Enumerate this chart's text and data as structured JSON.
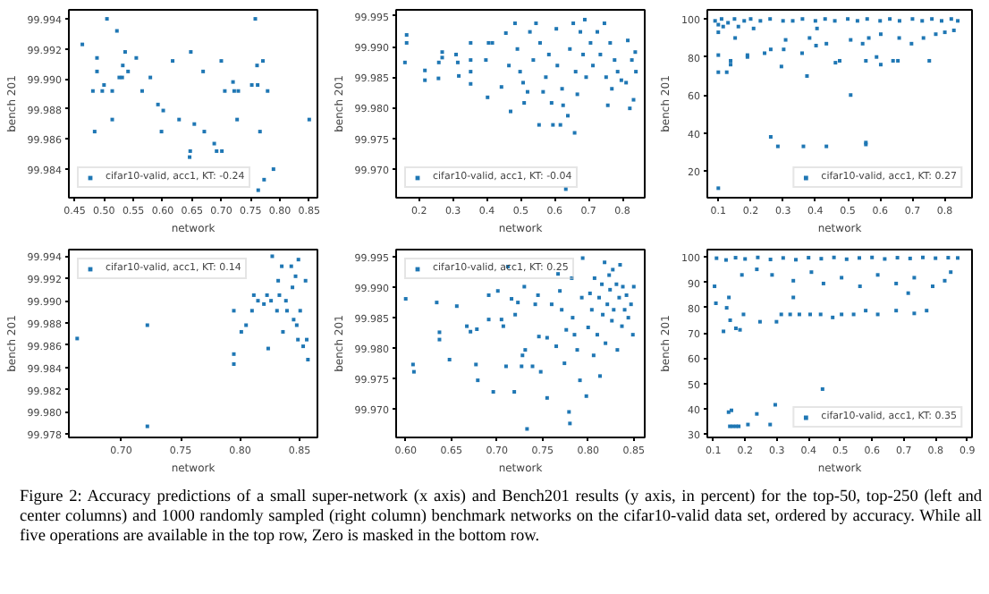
{
  "chart_data": [
    {
      "type": "scatter",
      "xlabel": "network",
      "ylabel": "bench 201",
      "legend": "bottom left",
      "marker": "square",
      "xlim": [
        0.44,
        0.864
      ],
      "ylim": [
        99.9821,
        99.9946
      ],
      "xticks": [
        0.45,
        {
          "value": 0.5,
          "label": "0.50"
        },
        0.55,
        {
          "value": 0.6,
          "label": "0.60"
        },
        0.65,
        {
          "value": 0.7,
          "label": "0.70"
        },
        0.75,
        {
          "value": 0.8,
          "label": "0.80"
        },
        0.85
      ],
      "yticks": [
        99.984,
        99.986,
        99.988,
        {
          "value": 99.99,
          "label": "99.990"
        },
        99.992,
        99.994
      ],
      "series": [
        {
          "name": "cifar10-valid, acc1, KT: -0.24",
          "color": "#1f77b4",
          "x": [
            0.463,
            0.505,
            0.522,
            0.488,
            0.488,
            0.481,
            0.484,
            0.497,
            0.5,
            0.514,
            0.514,
            0.526,
            0.531,
            0.532,
            0.536,
            0.541,
            0.555,
            0.565,
            0.579,
            0.592,
            0.601,
            0.598,
            0.617,
            0.628,
            0.648,
            0.647,
            0.646,
            0.654,
            0.669,
            0.671,
            0.688,
            0.692,
            0.701,
            0.7,
            0.706,
            0.72,
            0.722,
            0.727,
            0.729,
            0.752,
            0.758,
            0.761,
            0.762,
            0.766,
            0.771,
            0.763,
            0.773,
            0.779,
            0.789,
            0.85
          ],
          "values": [
            99.9923,
            99.994,
            99.9932,
            99.9914,
            99.9905,
            99.9892,
            99.9865,
            99.9892,
            99.9896,
            99.9892,
            99.9873,
            99.9901,
            99.9901,
            99.9909,
            99.9918,
            99.9905,
            99.9914,
            99.9892,
            99.9901,
            99.9883,
            99.9879,
            99.9865,
            99.9912,
            99.9873,
            99.9918,
            99.9852,
            99.9848,
            99.987,
            99.9905,
            99.9865,
            99.9857,
            99.9852,
            99.9852,
            99.9912,
            99.9892,
            99.9898,
            99.9892,
            99.9873,
            99.9892,
            99.9896,
            99.994,
            99.9909,
            99.9896,
            99.9865,
            99.9912,
            99.9826,
            99.9833,
            99.9892,
            99.984,
            99.9873
          ]
        }
      ]
    },
    {
      "type": "scatter",
      "xlabel": "network",
      "ylabel": "bench 201",
      "legend": "bottom left",
      "marker": "square",
      "xlim": [
        0.132,
        0.866
      ],
      "ylim": [
        99.9653,
        99.996
      ],
      "xticks": [
        0.2,
        0.3,
        0.4,
        0.5,
        0.6,
        0.7,
        0.8
      ],
      "yticks": [
        {
          "value": 99.97,
          "label": "99.970"
        },
        99.975,
        {
          "value": 99.98,
          "label": "99.980"
        },
        99.985,
        {
          "value": 99.99,
          "label": "99.990"
        },
        99.995
      ],
      "series": [
        {
          "name": "cifar10-valid, acc1, KT: -0.04",
          "color": "#1f77b4",
          "x": [
            0.163,
            0.163,
            0.158,
            0.217,
            0.217,
            0.257,
            0.258,
            0.268,
            0.268,
            0.309,
            0.314,
            0.317,
            0.352,
            0.352,
            0.352,
            0.352,
            0.397,
            0.405,
            0.402,
            0.416,
            0.443,
            0.456,
            0.465,
            0.47,
            0.483,
            0.49,
            0.498,
            0.507,
            0.51,
            0.52,
            0.527,
            0.537,
            0.545,
            0.554,
            0.557,
            0.566,
            0.574,
            0.583,
            0.591,
            0.595,
            0.605,
            0.608,
            0.617,
            0.622,
            0.625,
            0.633,
            0.639,
            0.645,
            0.655,
            0.659,
            0.662,
            0.667,
            0.676,
            0.684,
            0.689,
            0.693,
            0.706,
            0.713,
            0.726,
            0.735,
            0.747,
            0.752,
            0.757,
            0.764,
            0.769,
            0.777,
            0.786,
            0.797,
            0.811,
            0.816,
            0.822,
            0.828,
            0.833,
            0.838,
            0.84
          ],
          "values": [
            99.9919,
            99.9906,
            99.9874,
            99.9861,
            99.9845,
            99.9848,
            99.9874,
            99.9891,
            99.9882,
            99.9887,
            99.9874,
            99.9852,
            99.9906,
            99.9878,
            99.9859,
            99.9839,
            99.9878,
            99.9906,
            99.9817,
            99.9906,
            99.9834,
            99.9922,
            99.9869,
            99.9794,
            99.9938,
            99.9896,
            99.9859,
            99.9841,
            99.9808,
            99.9826,
            99.9924,
            99.9878,
            99.9938,
            99.9772,
            99.9906,
            99.9826,
            99.985,
            99.9887,
            99.9808,
            99.9772,
            99.9929,
            99.9869,
            99.9772,
            99.9831,
            99.9804,
            99.9667,
            99.9787,
            99.9896,
            99.9938,
            99.9759,
            99.9859,
            99.9822,
            99.9924,
            99.9887,
            99.9944,
            99.985,
            99.9906,
            99.9869,
            99.9924,
            99.9887,
            99.9938,
            99.985,
            99.9804,
            99.9906,
            99.9831,
            99.9878,
            99.9859,
            99.9845,
            99.9841,
            99.991,
            99.9799,
            99.9878,
            99.9813,
            99.9891,
            99.9859
          ]
        }
      ]
    },
    {
      "type": "scatter",
      "xlabel": "network",
      "ylabel": "bench 201",
      "legend": "bottom right",
      "marker": "square",
      "xlim": [
        0.066,
        0.884
      ],
      "ylim": [
        6,
        104.8
      ],
      "xticks": [
        0.1,
        0.2,
        0.3,
        0.4,
        0.5,
        0.6,
        0.7,
        0.8
      ],
      "yticks": [
        20,
        40,
        60,
        80,
        100
      ],
      "series": [
        {
          "name": "cifar10-valid, acc1, KT: 0.27",
          "color": "#1f77b4",
          "x": [
            0.1,
            0.1,
            0.1,
            0.1,
            0.126,
            0.138,
            0.138,
            0.19,
            0.19,
            0.243,
            0.262,
            0.262,
            0.284,
            0.295,
            0.302,
            0.308,
            0.363,
            0.359,
            0.374,
            0.382,
            0.402,
            0.405,
            0.434,
            0.462,
            0.475,
            0.509,
            0.556,
            0.556,
            0.556,
            0.589,
            0.602,
            0.64,
            0.655,
            0.752,
            0.509,
            0.546,
            0.565,
            0.659,
            0.697,
            0.734,
            0.772,
            0.8,
            0.828,
            0.602,
            0.434,
            0.152,
            0.115,
            0.162,
            0.209,
            0.09,
            0.1,
            0.11,
            0.13,
            0.15,
            0.18,
            0.2,
            0.23,
            0.26,
            0.3,
            0.33,
            0.36,
            0.4,
            0.43,
            0.46,
            0.5,
            0.53,
            0.56,
            0.6,
            0.63,
            0.66,
            0.7,
            0.73,
            0.76,
            0.79,
            0.82,
            0.84
          ],
          "values": [
            11,
            72,
            81,
            93,
            72,
            76,
            78,
            80,
            81,
            82,
            38,
            84,
            33,
            75,
            84,
            89,
            33,
            82,
            70,
            90,
            86,
            95,
            33,
            77,
            78,
            60,
            35,
            34,
            78,
            80,
            76,
            78,
            78,
            78,
            89,
            87,
            90,
            90,
            87,
            90,
            92,
            93,
            94,
            92,
            87,
            90,
            96,
            96,
            95,
            99,
            97,
            100,
            98,
            100,
            99,
            100,
            99,
            100,
            99,
            99,
            100,
            99,
            100,
            99,
            100,
            99,
            100,
            99,
            100,
            99,
            100,
            99,
            100,
            99,
            100,
            99
          ]
        }
      ]
    },
    {
      "type": "scatter",
      "xlabel": "network",
      "ylabel": "bench 201",
      "legend": "top left",
      "marker": "square",
      "xlim": [
        0.656,
        0.865
      ],
      "ylim": [
        99.9777,
        99.9946
      ],
      "xticks": [
        {
          "value": 0.7,
          "label": "0.70"
        },
        0.75,
        {
          "value": 0.8,
          "label": "0.80"
        },
        0.85
      ],
      "yticks": [
        99.978,
        {
          "value": 99.98,
          "label": "99.980"
        },
        99.982,
        99.984,
        99.986,
        99.988,
        {
          "value": 99.99,
          "label": "99.990"
        },
        99.992,
        99.994
      ],
      "series": [
        {
          "name": "cifar10-valid, acc1, KT: 0.14",
          "color": "#1f77b4",
          "x": [
            0.663,
            0.722,
            0.722,
            0.7947,
            0.7947,
            0.7947,
            0.801,
            0.805,
            0.81,
            0.8115,
            0.815,
            0.82,
            0.8226,
            0.8236,
            0.826,
            0.827,
            0.831,
            0.832,
            0.833,
            0.835,
            0.836,
            0.8385,
            0.8394,
            0.843,
            0.844,
            0.845,
            0.8466,
            0.8476,
            0.8486,
            0.849,
            0.8505,
            0.853,
            0.855,
            0.856,
            0.857
          ],
          "values": [
            99.9866,
            99.9878,
            99.9787,
            99.9891,
            99.9852,
            99.9843,
            99.9872,
            99.9878,
            99.9891,
            99.9905,
            99.99,
            99.9897,
            99.9905,
            99.9857,
            99.99,
            99.994,
            99.9891,
            99.9918,
            99.9905,
            99.9931,
            99.9872,
            99.99,
            99.9891,
            99.9931,
            99.9912,
            99.9883,
            99.9922,
            99.9878,
            99.9865,
            99.9937,
            99.9891,
            99.9859,
            99.9918,
            99.9865,
            99.9847
          ]
        }
      ]
    },
    {
      "type": "scatter",
      "xlabel": "network",
      "ylabel": "bench 201",
      "legend": "top left",
      "marker": "square",
      "xlim": [
        0.5895,
        0.862
      ],
      "ylim": [
        99.9653,
        99.9962
      ],
      "xticks": [
        {
          "value": 0.6,
          "label": "0.60"
        },
        0.65,
        {
          "value": 0.7,
          "label": "0.70"
        },
        0.75,
        {
          "value": 0.8,
          "label": "0.80"
        },
        0.85
      ],
      "yticks": [
        {
          "value": 99.97,
          "label": "99.970"
        },
        99.975,
        {
          "value": 99.98,
          "label": "99.980"
        },
        99.985,
        {
          "value": 99.99,
          "label": "99.990"
        },
        99.995
      ],
      "series": [
        {
          "name": "cifar10-valid, acc1, KT: 0.25",
          "color": "#1f77b4",
          "x": [
            0.6,
            0.608,
            0.609,
            0.634,
            0.637,
            0.637,
            0.648,
            0.656,
            0.667,
            0.671,
            0.678,
            0.677,
            0.679,
            0.691,
            0.691,
            0.696,
            0.701,
            0.705,
            0.707,
            0.71,
            0.712,
            0.716,
            0.719,
            0.72,
            0.723,
            0.727,
            0.73,
            0.728,
            0.733,
            0.731,
            0.739,
            0.742,
            0.745,
            0.746,
            0.748,
            0.755,
            0.755,
            0.76,
            0.765,
            0.767,
            0.769,
            0.771,
            0.774,
            0.776,
            0.779,
            0.78,
            0.782,
            0.783,
            0.785,
            0.788,
            0.791,
            0.793,
            0.794,
            0.798,
            0.8,
            0.802,
            0.804,
            0.806,
            0.807,
            0.81,
            0.812,
            0.813,
            0.815,
            0.816,
            0.818,
            0.819,
            0.821,
            0.823,
            0.824,
            0.826,
            0.827,
            0.828,
            0.831,
            0.832,
            0.834,
            0.835,
            0.837,
            0.838,
            0.84,
            0.842,
            0.844,
            0.847,
            0.849,
            0.85
          ],
          "values": [
            99.9881,
            99.9773,
            99.9761,
            99.9875,
            99.9826,
            99.9814,
            99.9781,
            99.9869,
            99.9836,
            99.9827,
            99.9831,
            99.9773,
            99.9747,
            99.9887,
            99.9847,
            99.9728,
            99.9894,
            99.9847,
            99.9836,
            99.977,
            99.9934,
            99.9881,
            99.9728,
            99.9855,
            99.9875,
            99.977,
            99.9901,
            99.9788,
            99.9667,
            99.9797,
            99.977,
            99.9872,
            99.9887,
            99.9819,
            99.9761,
            99.9817,
            99.9718,
            99.9872,
            99.9803,
            99.9922,
            99.9894,
            99.9863,
            99.9775,
            99.983,
            99.9695,
            99.9676,
            99.9915,
            99.985,
            99.9822,
            99.9797,
            99.9747,
            99.9883,
            99.9948,
            99.9721,
            99.9834,
            99.989,
            99.9863,
            99.9788,
            99.9915,
            99.9822,
            99.9883,
            99.9754,
            99.9905,
            99.9855,
            99.9941,
            99.9808,
            99.9872,
            99.992,
            99.9896,
            99.9845,
            99.9929,
            99.9863,
            99.9905,
            99.9797,
            99.9883,
            99.9937,
            99.9836,
            99.9901,
            99.9863,
            99.9887,
            99.985,
            99.9872,
            99.9822,
            99.9901
          ]
        }
      ]
    },
    {
      "type": "scatter",
      "xlabel": "network",
      "ylabel": "bench 201",
      "legend": "bottom right",
      "marker": "square",
      "xlim": [
        0.081,
        0.915
      ],
      "ylim": [
        28.7,
        102.9
      ],
      "xticks": [
        0.1,
        0.2,
        0.3,
        0.4,
        0.5,
        0.6,
        0.7,
        0.8,
        0.9
      ],
      "yticks": [
        30,
        40,
        50,
        60,
        70,
        80,
        90,
        100
      ],
      "series": [
        {
          "name": "cifar10-valid, acc1, KT: 0.35",
          "color": "#1f77b4",
          "x": [
            0.1038,
            0.108,
            0.132,
            0.142,
            0.149,
            0.153,
            0.148,
            0.157,
            0.152,
            0.161,
            0.171,
            0.18,
            0.171,
            0.184,
            0.19,
            0.195,
            0.209,
            0.237,
            0.247,
            0.279,
            0.295,
            0.299,
            0.314,
            0.342,
            0.352,
            0.371,
            0.405,
            0.438,
            0.444,
            0.476,
            0.504,
            0.542,
            0.58,
            0.618,
            0.676,
            0.733,
            0.772,
            0.237,
            0.285,
            0.352,
            0.409,
            0.447,
            0.504,
            0.562,
            0.618,
            0.676,
            0.733,
            0.791,
            0.829,
            0.848,
            0.714,
            0.11,
            0.14,
            0.17,
            0.2,
            0.24,
            0.28,
            0.32,
            0.36,
            0.4,
            0.44,
            0.48,
            0.52,
            0.56,
            0.6,
            0.64,
            0.68,
            0.72,
            0.76,
            0.8,
            0.84,
            0.87
          ],
          "values": [
            88.4,
            81.7,
            70.6,
            79.9,
            84.0,
            75.0,
            38.7,
            39.4,
            33.1,
            33.1,
            33.1,
            33.1,
            71.8,
            71.2,
            92.9,
            77.3,
            33.8,
            38.0,
            74.4,
            33.8,
            41.6,
            74.4,
            77.3,
            77.3,
            84.0,
            77.3,
            77.3,
            77.3,
            47.8,
            76.1,
            77.3,
            77.3,
            78.8,
            77.3,
            78.8,
            77.7,
            78.8,
            95.1,
            92.9,
            90.6,
            94.0,
            89.5,
            91.8,
            88.4,
            92.9,
            89.5,
            91.8,
            88.4,
            90.6,
            94.0,
            85.7,
            99.5,
            98.8,
            99.7,
            99.2,
            99.8,
            99.0,
            99.6,
            98.9,
            99.7,
            99.3,
            99.8,
            99.1,
            99.6,
            99.8,
            99.2,
            99.7,
            99.4,
            99.8,
            99.5,
            99.7,
            99.6
          ]
        }
      ]
    },
    {
      "type": "other",
      "annotations": [
        "Figure 2:   Accuracy predictions of a small super-network (x axis) and Bench201 results (y axis, in percent) for the top-50, top-250 (left and center columns) and 1000 randomly sampled (right column) benchmark networks on the cifar10-valid data set, ordered by accuracy. While all five operations are available in the top row, Zero is masked in the bottom row."
      ]
    }
  ]
}
